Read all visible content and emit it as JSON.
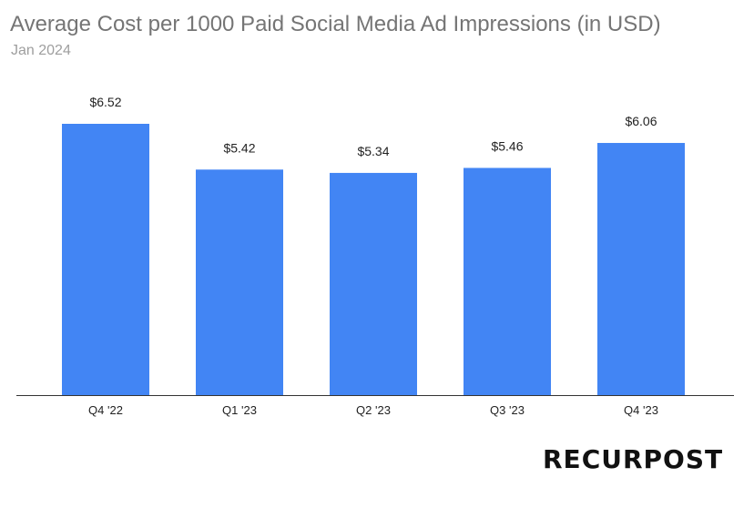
{
  "header": {
    "title": "Average Cost per 1000 Paid Social Media Ad Impressions (in USD)",
    "subtitle": "Jan 2024"
  },
  "logo": {
    "text": "RECURPOST"
  },
  "colors": {
    "bar": "#4285f4",
    "axis": "#333333"
  },
  "chart_data": {
    "type": "bar",
    "title": "Average Cost per 1000 Paid Social Media Ad Impressions (in USD)",
    "subtitle": "Jan 2024",
    "categories": [
      "Q4 '22",
      "Q1 '23",
      "Q2 '23",
      "Q3 '23",
      "Q4 '23"
    ],
    "values": [
      6.52,
      5.42,
      5.34,
      5.46,
      6.06
    ],
    "data_labels": [
      "$6.52",
      "$5.42",
      "$5.34",
      "$5.46",
      "$6.06"
    ],
    "xlabel": "",
    "ylabel": "",
    "ylim": [
      0,
      6.52
    ],
    "grid": false,
    "legend": "none"
  }
}
